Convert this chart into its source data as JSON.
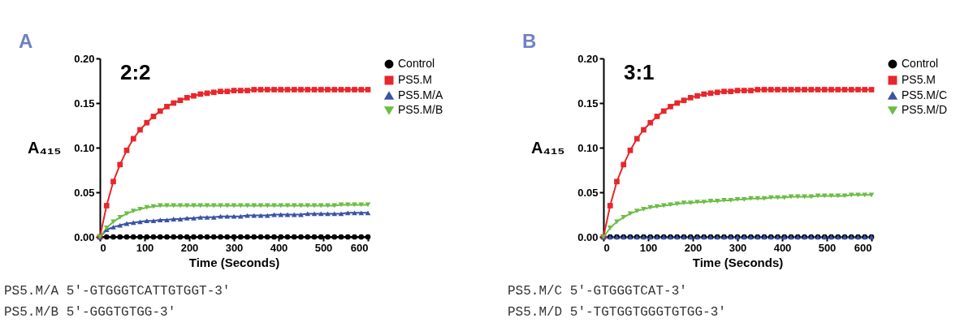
{
  "chart_data": [
    {
      "type": "line",
      "title": "A",
      "ylabel": "A₄₁₅",
      "xlabel": "Time (Seconds)",
      "legend": "right",
      "grid": false,
      "line_style": "solid",
      "xlim": [
        0,
        600
      ],
      "xticks": [
        0,
        100,
        200,
        300,
        400,
        500,
        600
      ],
      "ylim": [
        0,
        0.2
      ],
      "yticks": [
        {
          "value": 0,
          "label": "0.00"
        },
        {
          "value": 0.05,
          "label": "0.05"
        },
        {
          "value": 0.1,
          "label": "0.10"
        },
        {
          "value": 0.15,
          "label": "0.15"
        },
        {
          "value": 0.2,
          "label": "0.20"
        }
      ],
      "annotations": [
        "2:2",
        "PS5.M/A 5′-GTGGGTCATTGTGGT-3′",
        "PS5.M/B 5′-GGGTGTGG-3′"
      ],
      "x": [
        0,
        15,
        30,
        45,
        60,
        75,
        90,
        105,
        120,
        135,
        150,
        165,
        180,
        195,
        210,
        225,
        240,
        255,
        270,
        285,
        300,
        315,
        330,
        345,
        360,
        375,
        390,
        405,
        420,
        435,
        450,
        465,
        480,
        495,
        510,
        525,
        540,
        555,
        570,
        585,
        600
      ],
      "series": [
        {
          "name": "Control",
          "color": "#000000",
          "marker": "circle",
          "values": [
            0,
            0,
            0,
            0,
            0,
            0,
            0,
            0,
            0,
            0,
            0,
            0,
            0,
            0,
            0,
            0,
            0,
            0,
            0,
            0,
            0,
            0,
            0,
            0,
            0,
            0,
            0,
            0,
            0,
            0,
            0,
            0,
            0,
            0,
            0,
            0,
            0,
            0,
            0,
            0,
            0
          ]
        },
        {
          "name": "PS5.M",
          "color": "#e8262b",
          "marker": "square",
          "values": [
            0,
            0.035,
            0.062,
            0.081,
            0.097,
            0.11,
            0.12,
            0.128,
            0.135,
            0.141,
            0.146,
            0.15,
            0.153,
            0.156,
            0.158,
            0.16,
            0.161,
            0.162,
            0.163,
            0.163,
            0.164,
            0.164,
            0.164,
            0.165,
            0.165,
            0.165,
            0.165,
            0.165,
            0.165,
            0.165,
            0.165,
            0.165,
            0.165,
            0.165,
            0.165,
            0.165,
            0.165,
            0.165,
            0.165,
            0.165,
            0.165
          ]
        },
        {
          "name": "PS5.M/A",
          "color": "#3a53a4",
          "marker": "triangle",
          "values": [
            0,
            0.008,
            0.011,
            0.013,
            0.015,
            0.016,
            0.017,
            0.018,
            0.018,
            0.019,
            0.019,
            0.02,
            0.02,
            0.021,
            0.021,
            0.022,
            0.022,
            0.022,
            0.023,
            0.023,
            0.023,
            0.023,
            0.024,
            0.024,
            0.024,
            0.024,
            0.025,
            0.025,
            0.025,
            0.025,
            0.025,
            0.026,
            0.026,
            0.026,
            0.026,
            0.026,
            0.026,
            0.027,
            0.027,
            0.027,
            0.027
          ]
        },
        {
          "name": "PS5.M/B",
          "color": "#6cbd45",
          "marker": "triangle-down",
          "values": [
            0,
            0.01,
            0.017,
            0.022,
            0.026,
            0.029,
            0.031,
            0.033,
            0.034,
            0.035,
            0.035,
            0.035,
            0.035,
            0.035,
            0.035,
            0.035,
            0.035,
            0.035,
            0.035,
            0.035,
            0.035,
            0.035,
            0.035,
            0.035,
            0.035,
            0.035,
            0.035,
            0.035,
            0.035,
            0.035,
            0.035,
            0.035,
            0.035,
            0.035,
            0.035,
            0.035,
            0.036,
            0.036,
            0.036,
            0.036,
            0.036
          ]
        }
      ]
    },
    {
      "type": "line",
      "title": "B",
      "ylabel": "A₄₁₅",
      "xlabel": "Time (Seconds)",
      "legend": "right",
      "grid": false,
      "line_style": "solid",
      "xlim": [
        0,
        600
      ],
      "xticks": [
        0,
        100,
        200,
        300,
        400,
        500,
        600
      ],
      "ylim": [
        0,
        0.2
      ],
      "yticks": [
        {
          "value": 0,
          "label": "0.00"
        },
        {
          "value": 0.05,
          "label": "0.05"
        },
        {
          "value": 0.1,
          "label": "0.10"
        },
        {
          "value": 0.15,
          "label": "0.15"
        },
        {
          "value": 0.2,
          "label": "0.20"
        }
      ],
      "annotations": [
        "3:1",
        "PS5.M/C 5′-GTGGGTCAT-3′",
        "PS5.M/D 5′-TGTGGTGGGTGTGG-3′"
      ],
      "x": [
        0,
        15,
        30,
        45,
        60,
        75,
        90,
        105,
        120,
        135,
        150,
        165,
        180,
        195,
        210,
        225,
        240,
        255,
        270,
        285,
        300,
        315,
        330,
        345,
        360,
        375,
        390,
        405,
        420,
        435,
        450,
        465,
        480,
        495,
        510,
        525,
        540,
        555,
        570,
        585,
        600
      ],
      "series": [
        {
          "name": "Control",
          "color": "#000000",
          "marker": "circle",
          "values": [
            0,
            0,
            0,
            0,
            0,
            0,
            0,
            0,
            0,
            0,
            0,
            0,
            0,
            0,
            0,
            0,
            0,
            0,
            0,
            0,
            0,
            0,
            0,
            0,
            0,
            0,
            0,
            0,
            0,
            0,
            0,
            0,
            0,
            0,
            0,
            0,
            0,
            0,
            0,
            0,
            0
          ]
        },
        {
          "name": "PS5.M",
          "color": "#e8262b",
          "marker": "square",
          "values": [
            0,
            0.035,
            0.062,
            0.081,
            0.097,
            0.11,
            0.12,
            0.128,
            0.135,
            0.141,
            0.146,
            0.15,
            0.153,
            0.156,
            0.158,
            0.16,
            0.161,
            0.162,
            0.163,
            0.163,
            0.164,
            0.164,
            0.164,
            0.165,
            0.165,
            0.165,
            0.165,
            0.165,
            0.165,
            0.165,
            0.165,
            0.165,
            0.165,
            0.165,
            0.165,
            0.165,
            0.165,
            0.165,
            0.165,
            0.165,
            0.165
          ]
        },
        {
          "name": "PS5.M/C",
          "color": "#3a53a4",
          "marker": "triangle",
          "values": [
            0,
            0,
            0,
            0,
            0,
            0,
            0,
            0,
            0,
            0,
            0,
            0,
            0,
            0,
            0,
            0,
            0,
            0,
            0,
            0,
            0,
            0,
            0,
            0,
            0,
            0,
            0,
            0,
            0,
            0,
            0,
            0,
            0,
            0,
            0,
            0,
            0,
            0,
            0,
            0,
            0
          ]
        },
        {
          "name": "PS5.M/D",
          "color": "#6cbd45",
          "marker": "triangle-down",
          "values": [
            0,
            0.01,
            0.017,
            0.022,
            0.026,
            0.029,
            0.031,
            0.033,
            0.034,
            0.035,
            0.036,
            0.037,
            0.038,
            0.038,
            0.039,
            0.039,
            0.04,
            0.04,
            0.041,
            0.041,
            0.042,
            0.042,
            0.043,
            0.043,
            0.043,
            0.044,
            0.044,
            0.044,
            0.045,
            0.045,
            0.045,
            0.045,
            0.046,
            0.046,
            0.046,
            0.046,
            0.046,
            0.047,
            0.047,
            0.047,
            0.047
          ]
        }
      ]
    }
  ]
}
